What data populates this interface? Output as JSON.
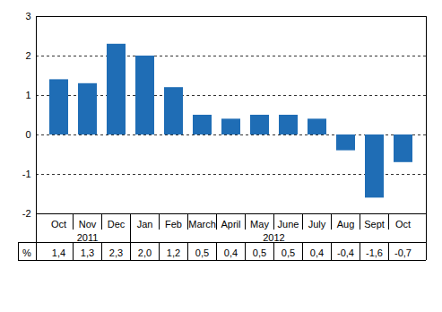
{
  "chart_data": {
    "type": "bar",
    "categories": [
      "Oct",
      "Nov",
      "Dec",
      "Jan",
      "Feb",
      "March",
      "April",
      "May",
      "June",
      "July",
      "Aug",
      "Sept",
      "Oct"
    ],
    "groups": [
      {
        "label": "2011",
        "count": 3
      },
      {
        "label": "2012",
        "count": 10
      }
    ],
    "values": [
      1.4,
      1.3,
      2.3,
      2.0,
      1.2,
      0.5,
      0.4,
      0.5,
      0.5,
      0.4,
      -0.4,
      -1.6,
      -0.7
    ],
    "value_labels": [
      "1,4",
      "1,3",
      "2,3",
      "2,0",
      "1,2",
      "0,5",
      "0,4",
      "0,5",
      "0,5",
      "0,4",
      "-0,4",
      "-1,6",
      "-0,7"
    ],
    "value_labels_title": "%",
    "color": "#1f6db5",
    "ylim": [
      -2,
      3
    ],
    "yticks": [
      -2,
      -1,
      0,
      1,
      2,
      3
    ],
    "grid": true,
    "data_labels": true
  }
}
